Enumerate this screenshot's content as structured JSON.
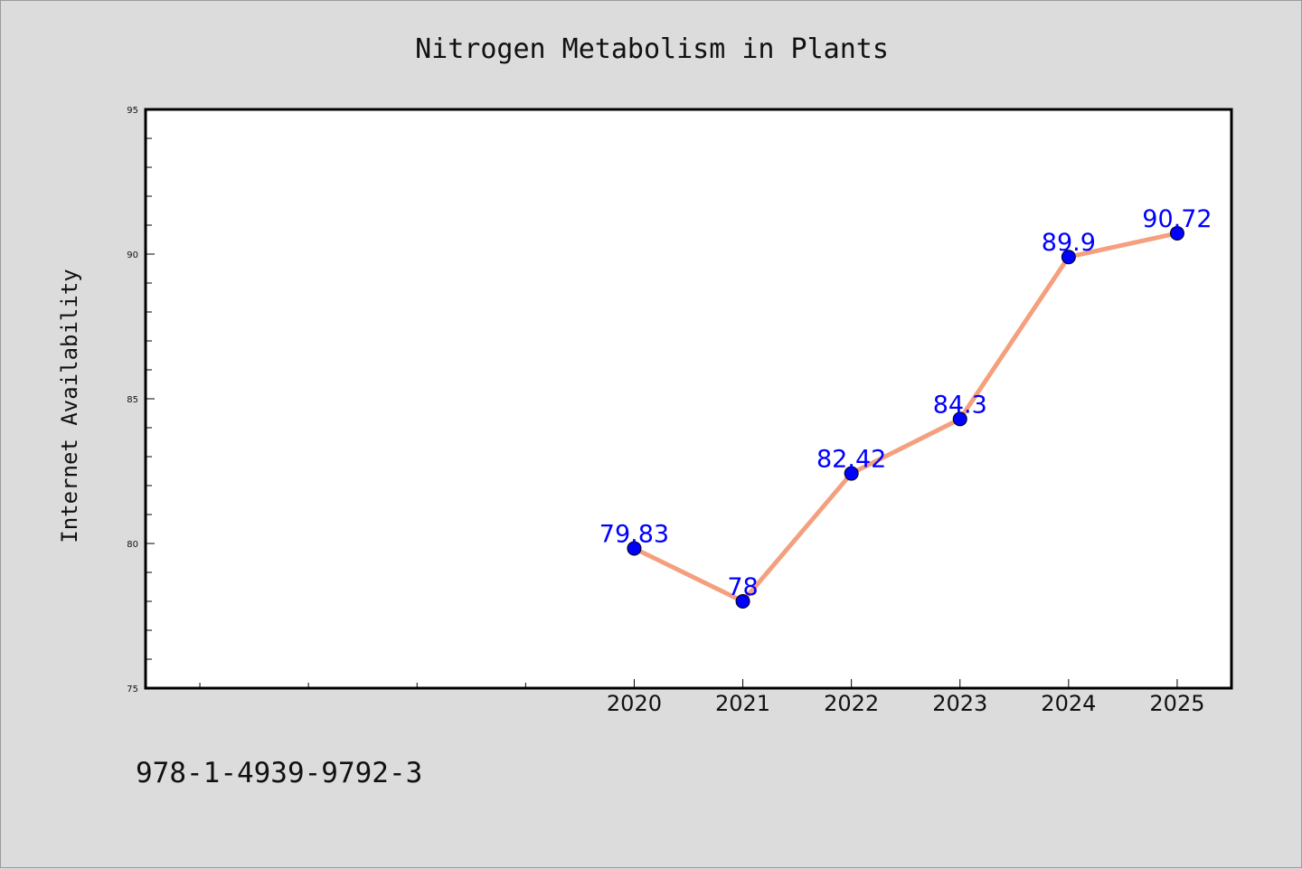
{
  "footer_code": "978-1-4939-9792-3",
  "colors": {
    "background": "#dcdcdc",
    "plot_background": "#ffffff",
    "line": "#f4a07e",
    "marker": "#0000ff",
    "data_label": "#0000ff"
  },
  "chart_data": {
    "type": "line",
    "title": "Nitrogen Metabolism in Plants",
    "xlabel": "",
    "ylabel": "Internet Availability",
    "ylim": [
      75,
      95
    ],
    "yticks": [
      75,
      80,
      85,
      90,
      95
    ],
    "ytick_labels": [
      "75",
      "80",
      "85",
      "90",
      "95"
    ],
    "xlim": [
      2015.5,
      2025.5
    ],
    "xticks_labeled": [
      2020,
      2021,
      2022,
      2023,
      2024,
      2025
    ],
    "xtick_labels": [
      "2020",
      "2021",
      "2022",
      "2023",
      "2024",
      "2025"
    ],
    "xticks_minor": [
      2016,
      2017,
      2018,
      2019
    ],
    "grid": false,
    "series": [
      {
        "x": [
          2020,
          2021,
          2022,
          2023,
          2024,
          2025
        ],
        "y": [
          79.83,
          78,
          82.42,
          84.3,
          89.9,
          90.72
        ],
        "labels": [
          "79.83",
          "78",
          "82.42",
          "84.3",
          "89.9",
          "90.72"
        ]
      }
    ]
  }
}
